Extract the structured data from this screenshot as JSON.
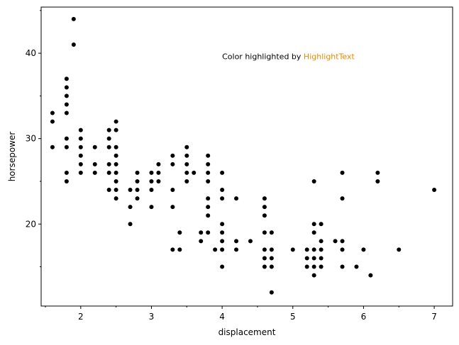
{
  "chart_data": {
    "type": "scatter",
    "title": "",
    "xlabel": "displacement",
    "ylabel": "horsepower",
    "xlim": [
      1.44,
      7.26
    ],
    "ylim": [
      10.4,
      45.4
    ],
    "x_ticks": [
      2,
      3,
      4,
      5,
      6,
      7
    ],
    "x_tick_labels": [
      "2",
      "3",
      "4",
      "5",
      "6",
      "7"
    ],
    "x_minor_ticks": [
      1.5,
      2.5,
      3.5,
      4.5,
      5.5,
      6.5
    ],
    "y_ticks": [
      20,
      30,
      40
    ],
    "y_tick_labels": [
      "20",
      "30",
      "40"
    ],
    "y_minor_ticks": [
      15,
      25,
      35,
      45
    ],
    "grid": false,
    "marker_color": "#000000",
    "annotation": {
      "prefix": "Color highlighted by ",
      "highlight": "HighlightText",
      "prefix_color": "#000000",
      "highlight_color": "#e68a00",
      "x": 4.0,
      "y": 39.3
    },
    "points": [
      [
        1.6,
        33
      ],
      [
        1.6,
        32
      ],
      [
        1.6,
        29
      ],
      [
        1.8,
        37
      ],
      [
        1.8,
        36
      ],
      [
        1.8,
        35
      ],
      [
        1.8,
        34
      ],
      [
        1.8,
        33
      ],
      [
        1.8,
        30
      ],
      [
        1.8,
        29
      ],
      [
        1.8,
        26
      ],
      [
        1.8,
        25
      ],
      [
        1.9,
        44
      ],
      [
        1.9,
        41
      ],
      [
        2.0,
        31
      ],
      [
        2.0,
        30
      ],
      [
        2.0,
        29
      ],
      [
        2.0,
        28
      ],
      [
        2.0,
        27
      ],
      [
        2.0,
        26
      ],
      [
        2.2,
        29
      ],
      [
        2.2,
        27
      ],
      [
        2.2,
        26
      ],
      [
        2.4,
        31
      ],
      [
        2.4,
        30
      ],
      [
        2.4,
        29
      ],
      [
        2.4,
        27
      ],
      [
        2.4,
        26
      ],
      [
        2.4,
        24
      ],
      [
        2.5,
        32
      ],
      [
        2.5,
        31
      ],
      [
        2.5,
        29
      ],
      [
        2.5,
        28
      ],
      [
        2.5,
        27
      ],
      [
        2.5,
        26
      ],
      [
        2.5,
        25
      ],
      [
        2.5,
        24
      ],
      [
        2.5,
        23
      ],
      [
        2.7,
        24
      ],
      [
        2.7,
        22
      ],
      [
        2.7,
        20
      ],
      [
        2.8,
        26
      ],
      [
        2.8,
        25
      ],
      [
        2.8,
        24
      ],
      [
        2.8,
        23
      ],
      [
        3.0,
        26
      ],
      [
        3.0,
        25
      ],
      [
        3.0,
        24
      ],
      [
        3.0,
        22
      ],
      [
        3.1,
        27
      ],
      [
        3.1,
        26
      ],
      [
        3.1,
        25
      ],
      [
        3.3,
        28
      ],
      [
        3.3,
        27
      ],
      [
        3.3,
        24
      ],
      [
        3.3,
        22
      ],
      [
        3.3,
        17
      ],
      [
        3.4,
        19
      ],
      [
        3.4,
        17
      ],
      [
        3.5,
        29
      ],
      [
        3.5,
        28
      ],
      [
        3.5,
        27
      ],
      [
        3.5,
        26
      ],
      [
        3.5,
        25
      ],
      [
        3.6,
        26
      ],
      [
        3.7,
        19
      ],
      [
        3.7,
        18
      ],
      [
        3.8,
        28
      ],
      [
        3.8,
        27
      ],
      [
        3.8,
        26
      ],
      [
        3.8,
        25
      ],
      [
        3.8,
        23
      ],
      [
        3.8,
        22
      ],
      [
        3.8,
        21
      ],
      [
        3.8,
        19
      ],
      [
        3.9,
        17
      ],
      [
        4.0,
        26
      ],
      [
        4.0,
        24
      ],
      [
        4.0,
        23
      ],
      [
        4.0,
        20
      ],
      [
        4.0,
        19
      ],
      [
        4.0,
        18
      ],
      [
        4.0,
        17
      ],
      [
        4.0,
        15
      ],
      [
        4.2,
        23
      ],
      [
        4.2,
        18
      ],
      [
        4.2,
        17
      ],
      [
        4.4,
        18
      ],
      [
        4.6,
        23
      ],
      [
        4.6,
        22
      ],
      [
        4.6,
        21
      ],
      [
        4.6,
        19
      ],
      [
        4.6,
        17
      ],
      [
        4.6,
        16
      ],
      [
        4.6,
        15
      ],
      [
        4.7,
        19
      ],
      [
        4.7,
        17
      ],
      [
        4.7,
        16
      ],
      [
        4.7,
        15
      ],
      [
        4.7,
        12
      ],
      [
        5.0,
        17
      ],
      [
        5.2,
        17
      ],
      [
        5.2,
        16
      ],
      [
        5.2,
        15
      ],
      [
        5.3,
        25
      ],
      [
        5.3,
        20
      ],
      [
        5.3,
        19
      ],
      [
        5.3,
        17
      ],
      [
        5.3,
        16
      ],
      [
        5.3,
        15
      ],
      [
        5.3,
        14
      ],
      [
        5.4,
        20
      ],
      [
        5.4,
        18
      ],
      [
        5.4,
        17
      ],
      [
        5.4,
        16
      ],
      [
        5.4,
        15
      ],
      [
        5.6,
        18
      ],
      [
        5.7,
        26
      ],
      [
        5.7,
        23
      ],
      [
        5.7,
        18
      ],
      [
        5.7,
        17
      ],
      [
        5.7,
        15
      ],
      [
        5.9,
        15
      ],
      [
        6.0,
        17
      ],
      [
        6.1,
        14
      ],
      [
        6.2,
        26
      ],
      [
        6.2,
        25
      ],
      [
        6.5,
        17
      ],
      [
        7.0,
        24
      ]
    ]
  }
}
